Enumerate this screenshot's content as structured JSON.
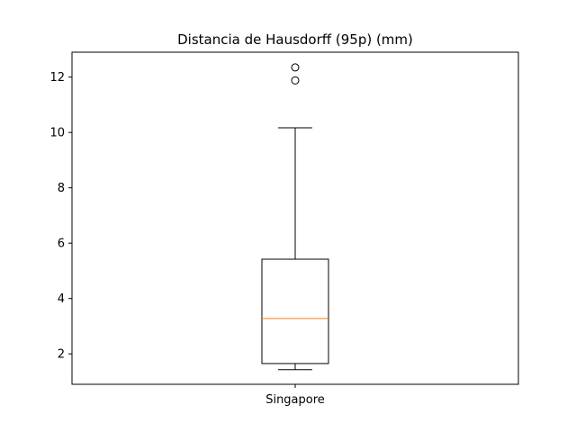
{
  "chart_data": {
    "type": "box",
    "title": "Distancia de Hausdorff (95p) (mm)",
    "xlabel": "",
    "ylabel": "",
    "categories": [
      "Singapore"
    ],
    "ylim": [
      0.9,
      12.9
    ],
    "yticks": [
      2,
      4,
      6,
      8,
      10,
      12
    ],
    "grid": false,
    "colors": {
      "box": "#000000",
      "median": "#ff7f0e",
      "axes": "#000000"
    },
    "boxes": [
      {
        "label": "Singapore",
        "whisker_low": 1.43,
        "q1": 1.65,
        "median": 3.28,
        "q3": 5.42,
        "whisker_high": 10.17,
        "outliers": [
          11.88,
          12.35
        ]
      }
    ]
  }
}
